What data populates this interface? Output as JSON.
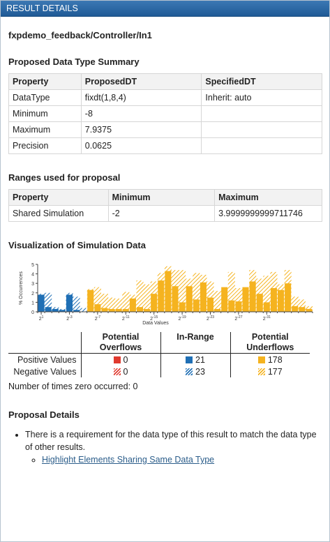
{
  "header": {
    "title": "RESULT DETAILS"
  },
  "path": "fxpdemo_feedback/Controller/In1",
  "summary_section": {
    "title": "Proposed Data Type Summary",
    "columns": [
      "Property",
      "ProposedDT",
      "SpecifiedDT"
    ],
    "rows": [
      [
        "DataType",
        "fixdt(1,8,4)",
        "Inherit: auto"
      ],
      [
        "Minimum",
        "-8",
        ""
      ],
      [
        "Maximum",
        "7.9375",
        ""
      ],
      [
        "Precision",
        "0.0625",
        ""
      ]
    ]
  },
  "ranges_section": {
    "title": "Ranges used for proposal",
    "columns": [
      "Property",
      "Minimum",
      "Maximum"
    ],
    "rows": [
      [
        "Shared Simulation",
        "-2",
        "3.9999999999711746"
      ]
    ]
  },
  "visualization": {
    "title": "Visualization of Simulation Data",
    "colors": {
      "overflow": "#e03a2f",
      "inrange": "#1f6fb5",
      "underflow": "#f5b31f",
      "axis": "#444444"
    },
    "legend": {
      "col_overflow": [
        "Potential",
        "Overflows"
      ],
      "col_inrange": "In-Range",
      "col_underflow": [
        "Potential",
        "Underflows"
      ],
      "positive_label": "Positive Values",
      "negative_label": "Negative Values",
      "positive": {
        "overflow": "0",
        "inrange": "21",
        "underflow": "178"
      },
      "negative": {
        "overflow": "0",
        "inrange": "23",
        "underflow": "177"
      }
    },
    "zero_text": "Number of times zero occurred: 0"
  },
  "chart_data": {
    "type": "bar",
    "ylabel": "% Occurrences",
    "xlabel": "Data Values",
    "ylim": [
      0,
      5
    ],
    "yticks": [
      0,
      1,
      2,
      3,
      4,
      5
    ],
    "x_tick_labels": [
      {
        "base": "2",
        "exp": "1"
      },
      {
        "base": "2",
        "exp": "-3"
      },
      {
        "base": "2",
        "exp": "-7"
      },
      {
        "base": "2",
        "exp": "-11"
      },
      {
        "base": "2",
        "exp": "-15"
      },
      {
        "base": "2",
        "exp": "-19"
      },
      {
        "base": "2",
        "exp": "-23"
      },
      {
        "base": "2",
        "exp": "-27"
      },
      {
        "base": "2",
        "exp": "-31"
      }
    ],
    "series": [
      {
        "name": "In-Range Positive",
        "start": 0,
        "values": [
          1.8,
          0.5,
          0.3,
          0.2,
          1.8,
          0.2
        ]
      },
      {
        "name": "In-Range Negative",
        "start": 0,
        "values": [
          1.9,
          2.0,
          0.5,
          0.3,
          2.0,
          1.6,
          0.4
        ]
      },
      {
        "name": "Underflows Positive",
        "start": 7,
        "values": [
          2.3,
          0.8,
          0.4,
          0.3,
          0.3,
          0.3,
          1.4,
          0.5,
          0.3,
          1.9,
          3.3,
          4.3,
          2.7,
          1.0,
          2.7,
          1.3,
          3.1,
          1.5,
          0.3,
          2.6,
          1.2,
          1.1,
          2.6,
          3.2,
          1.9,
          1.0,
          2.5,
          2.3,
          3.0,
          0.6,
          0.5,
          0.3
        ]
      },
      {
        "name": "Underflows Negative",
        "start": 7,
        "values": [
          2.4,
          2.6,
          1.9,
          1.5,
          1.4,
          2.1,
          1.8,
          3.3,
          2.9,
          3.2,
          4.1,
          4.8,
          4.4,
          4.4,
          3.5,
          4.1,
          3.9,
          3.2,
          2.2,
          2.5,
          4.2,
          2.5,
          2.5,
          4.4,
          3.5,
          3.8,
          4.2,
          2.9,
          4.4,
          1.6,
          1.3,
          0.6
        ]
      }
    ]
  },
  "proposal_details": {
    "title": "Proposal Details",
    "bullet": "There is a requirement for the data type of this result to match the data type of other results.",
    "link": "Highlight Elements Sharing Same Data Type"
  }
}
